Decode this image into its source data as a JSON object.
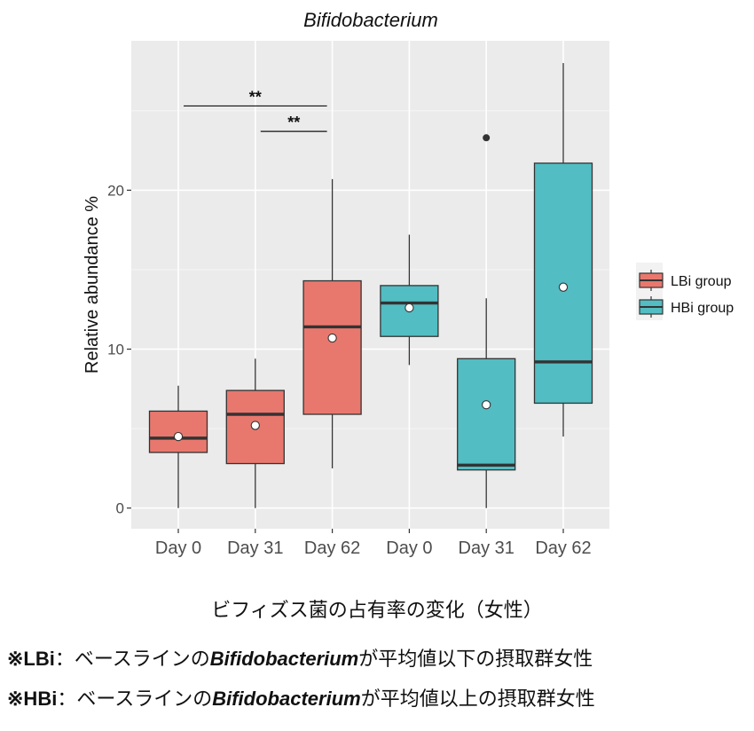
{
  "chart_data": {
    "type": "boxplot",
    "title": "Bifidobacterium",
    "ylabel": "Relative abundance %",
    "xlabel": "",
    "ylim": [
      -1.3,
      29.4
    ],
    "yticks": [
      0,
      10,
      20
    ],
    "grid": true,
    "legend_position": "right",
    "categories": [
      "Day 0",
      "Day 31",
      "Day 62",
      "Day 0",
      "Day 31",
      "Day 62"
    ],
    "series": [
      {
        "name": "LBi group",
        "color": "#E8786E",
        "boxes": [
          {
            "category_index": 0,
            "min": 0.0,
            "q1": 3.5,
            "median": 4.4,
            "q3": 6.1,
            "max": 7.7,
            "mean": 4.5,
            "outliers": []
          },
          {
            "category_index": 1,
            "min": 0.0,
            "q1": 2.8,
            "median": 5.9,
            "q3": 7.4,
            "max": 9.4,
            "mean": 5.2,
            "outliers": []
          },
          {
            "category_index": 2,
            "min": 2.5,
            "q1": 5.9,
            "median": 11.4,
            "q3": 14.3,
            "max": 20.7,
            "mean": 10.7,
            "outliers": []
          }
        ]
      },
      {
        "name": "HBi group",
        "color": "#52BDC2",
        "boxes": [
          {
            "category_index": 3,
            "min": 9.0,
            "q1": 10.8,
            "median": 12.9,
            "q3": 14.0,
            "max": 17.2,
            "mean": 12.6,
            "outliers": []
          },
          {
            "category_index": 4,
            "min": 0.0,
            "q1": 2.4,
            "median": 2.7,
            "q3": 9.4,
            "max": 13.2,
            "mean": 6.5,
            "outliers": [
              23.3
            ]
          },
          {
            "category_index": 5,
            "min": 4.5,
            "q1": 6.6,
            "median": 9.2,
            "q3": 21.7,
            "max": 28.0,
            "mean": 13.9,
            "outliers": []
          }
        ]
      }
    ],
    "annotations": [
      {
        "label": "**",
        "from_index": 0,
        "to_index": 2,
        "y": 25.3
      },
      {
        "label": "**",
        "from_index": 1,
        "to_index": 2,
        "y": 23.7
      }
    ]
  },
  "caption": "ビフィズス菌の占有率の変化（女性）",
  "notes": [
    {
      "mark": "※LBi",
      "text_before": "：ベースラインの",
      "italic": "Bifidobacterium",
      "text_after": "が平均値以下の摂取群女性"
    },
    {
      "mark": "※HBi",
      "text_before": "：ベースラインの",
      "italic": "Bifidobacterium",
      "text_after": "が平均値以上の摂取群女性"
    }
  ]
}
